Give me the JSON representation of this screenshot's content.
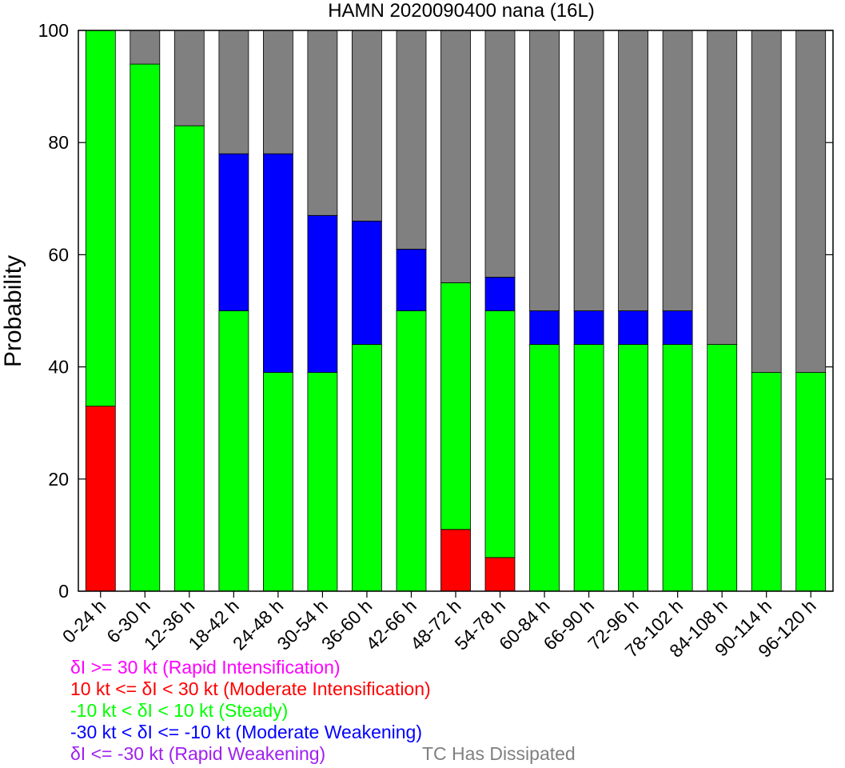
{
  "chart_data": {
    "type": "bar",
    "stacked": true,
    "title": "HAMN 2020090400 nana (16L)",
    "xlabel": "",
    "ylabel": "Probability",
    "ylim": [
      0,
      100
    ],
    "yticks": [
      "0",
      "20",
      "40",
      "60",
      "80",
      "100"
    ],
    "grid": false,
    "categories": [
      "0-24 h",
      "6-30 h",
      "12-36 h",
      "18-42 h",
      "24-48 h",
      "30-54 h",
      "36-60 h",
      "42-66 h",
      "48-72 h",
      "54-78 h",
      "60-84 h",
      "66-90 h",
      "72-96 h",
      "78-102 h",
      "84-108 h",
      "90-114 h",
      "96-120 h"
    ],
    "series": [
      {
        "name": "δI >= 30 kt (Rapid Intensification)",
        "color": "#ff00ff",
        "values": [
          0,
          0,
          0,
          0,
          0,
          0,
          0,
          0,
          0,
          0,
          0,
          0,
          0,
          0,
          0,
          0,
          0
        ]
      },
      {
        "name": "10 kt <= δI < 30 kt (Moderate Intensification)",
        "color": "#ff0000",
        "values": [
          33,
          0,
          0,
          0,
          0,
          0,
          0,
          0,
          11,
          6,
          0,
          0,
          0,
          0,
          0,
          0,
          0
        ]
      },
      {
        "name": "-10 kt < δI < 10 kt (Steady)",
        "color": "#00ff00",
        "values": [
          67,
          94,
          83,
          50,
          39,
          39,
          44,
          50,
          44,
          44,
          44,
          44,
          44,
          44,
          44,
          39,
          39
        ]
      },
      {
        "name": "-30 kt < δI <= -10 kt (Moderate Weakening)",
        "color": "#0000ff",
        "values": [
          0,
          0,
          0,
          28,
          39,
          28,
          22,
          11,
          0,
          6,
          6,
          6,
          6,
          6,
          0,
          0,
          0
        ]
      },
      {
        "name": "δI <= -30 kt (Rapid Weakening)",
        "color": "#a020f0",
        "values": [
          0,
          0,
          0,
          0,
          0,
          0,
          0,
          0,
          0,
          0,
          0,
          0,
          0,
          0,
          0,
          0,
          0
        ]
      },
      {
        "name": "TC Has Dissipated",
        "color": "#808080",
        "values": [
          0,
          6,
          17,
          22,
          22,
          33,
          34,
          39,
          45,
          44,
          50,
          50,
          50,
          50,
          56,
          61,
          61
        ]
      }
    ],
    "legend_placement": "bottom"
  }
}
